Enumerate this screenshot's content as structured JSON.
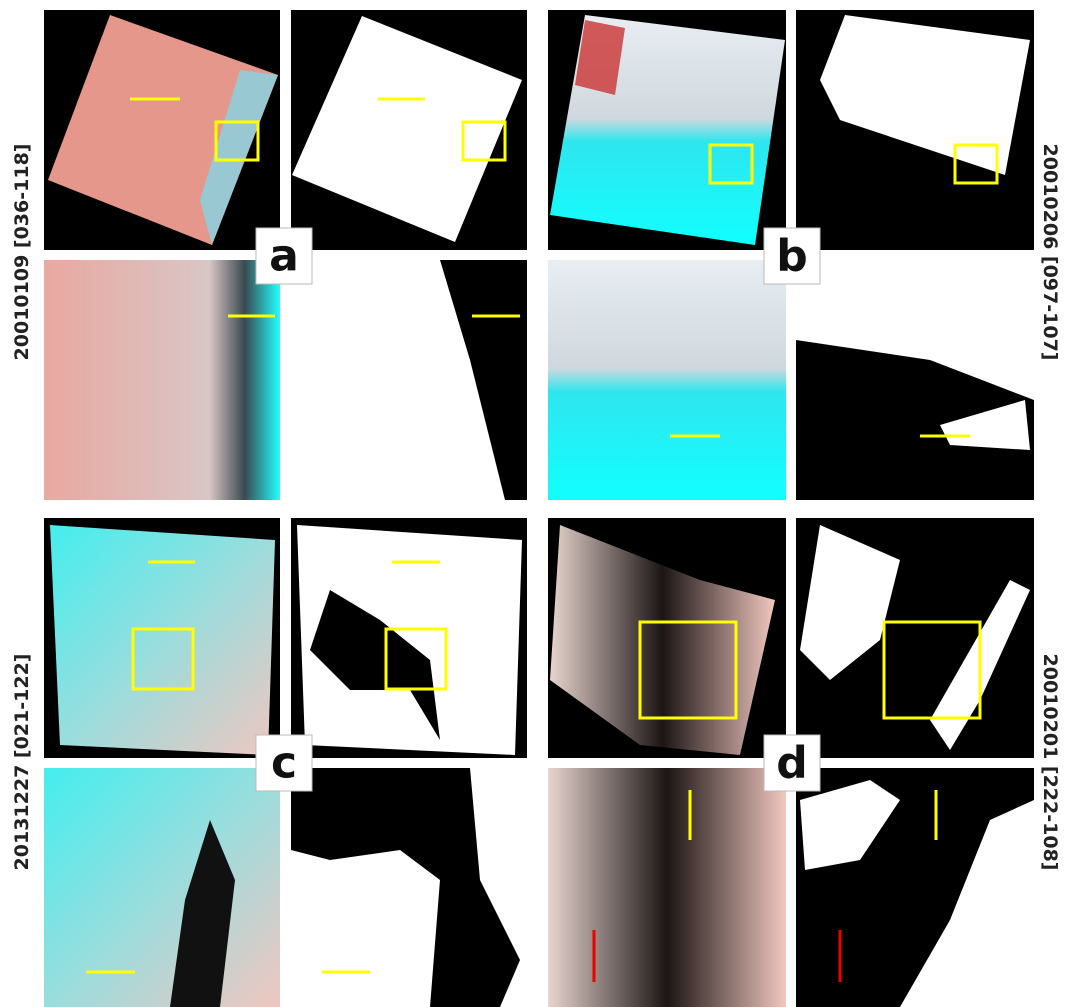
{
  "panels": [
    {
      "label": "a",
      "side_label": "20010109 [036-118]"
    },
    {
      "label": "b",
      "side_label": "20010206 [097-107]"
    },
    {
      "label": "c",
      "side_label": "20131227 [021-122]"
    },
    {
      "label": "d",
      "side_label": "20010201 [222-108]"
    }
  ]
}
